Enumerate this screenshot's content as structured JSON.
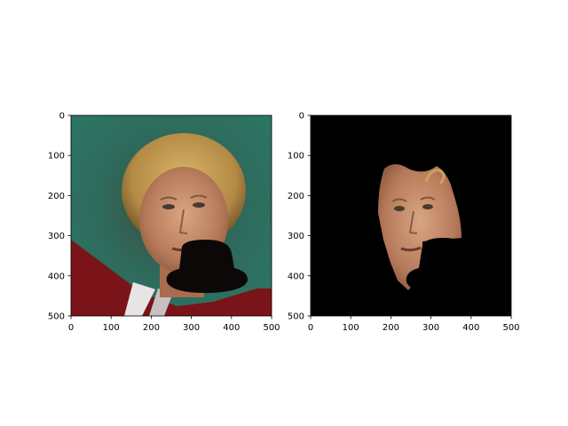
{
  "chart_data": [
    {
      "type": "image",
      "panel": "left",
      "title": "",
      "xlabel": "",
      "ylabel": "",
      "xlim": [
        0,
        500
      ],
      "ylim": [
        500,
        0
      ],
      "x_ticks": [
        0,
        100,
        200,
        300,
        400,
        500
      ],
      "y_ticks": [
        0,
        100,
        200,
        300,
        400,
        500
      ],
      "x_tick_labels": [
        "0",
        "100",
        "200",
        "300",
        "400",
        "500"
      ],
      "y_tick_labels": [
        "0",
        "100",
        "200",
        "300",
        "400",
        "500"
      ],
      "content": "face photo with a black bowler hat shape covering the lower right",
      "background_color": "#2f6b5e"
    },
    {
      "type": "image",
      "panel": "right",
      "title": "",
      "xlabel": "",
      "ylabel": "",
      "xlim": [
        0,
        500
      ],
      "ylim": [
        500,
        0
      ],
      "x_ticks": [
        0,
        100,
        200,
        300,
        400,
        500
      ],
      "y_ticks": [
        0,
        100,
        200,
        300,
        400,
        500
      ],
      "x_tick_labels": [
        "0",
        "100",
        "200",
        "300",
        "400",
        "500"
      ],
      "y_tick_labels": [
        "0",
        "100",
        "200",
        "300",
        "400",
        "500"
      ],
      "content": "segmented face region on black background with black hat occluder",
      "background_color": "#000000"
    }
  ]
}
